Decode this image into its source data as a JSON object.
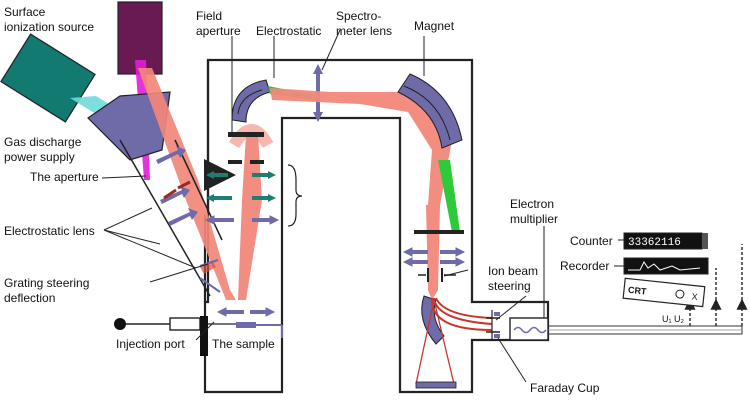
{
  "labels": {
    "surface_source": [
      "Surface",
      "ionization source"
    ],
    "gas_supply": [
      "Gas discharge",
      "power supply"
    ],
    "field_aperture": [
      "Field",
      "aperture"
    ],
    "electrostatic": "Electrostatic",
    "spectrometer_lens": [
      "Spectro-",
      "meter lens"
    ],
    "magnet": "Magnet",
    "aperture": "The aperture",
    "electrostatic_lens": "Electrostatic lens",
    "grating": [
      "Grating steering",
      "deflection"
    ],
    "injection_port": "Injection port",
    "sample": "The sample",
    "electron_multiplier": [
      "Electron",
      "multiplier"
    ],
    "counter": "Counter",
    "recorder": "Recorder",
    "ion_beam_steering": [
      "Ion beam",
      "steering"
    ],
    "faraday_cup": "Faraday Cup"
  },
  "instruments": {
    "counter_digits": "33362116",
    "crt_label": "CRT",
    "crt_small": "X",
    "crt_sub": "U₁ U₂"
  },
  "colors": {
    "beam": "#f2877a",
    "lens": "#6f6aa8",
    "green": "#2eca3a",
    "magenta": "#e21ed6",
    "teal_box": "#137a72",
    "purple_box": "#6a1a52",
    "cyan_beam": "#6fdad9",
    "frame": "#222222",
    "teal_arrow": "#1f7d74"
  }
}
